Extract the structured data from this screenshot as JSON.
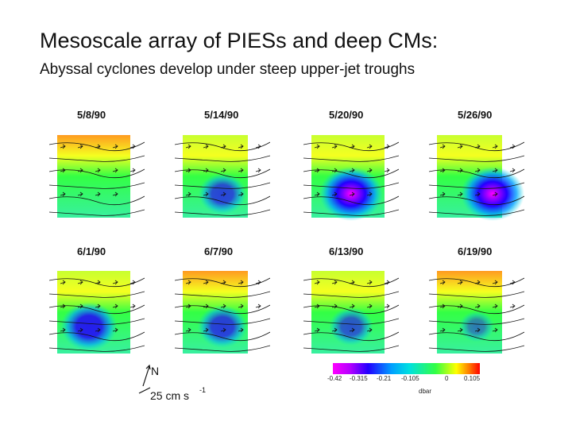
{
  "title": "Mesoscale array of PIESs and deep CMs:",
  "subtitle": "Abyssal cyclones develop under steep upper-jet troughs",
  "panels": [
    {
      "date": "5/8/90",
      "eddy_strength": 0.0,
      "high_top": true
    },
    {
      "date": "5/14/90",
      "eddy_strength": 0.55,
      "high_top": false
    },
    {
      "date": "5/20/90",
      "eddy_strength": 1.0,
      "high_top": false
    },
    {
      "date": "5/26/90",
      "eddy_strength": 1.0,
      "high_top": false
    },
    {
      "date": "6/1/90",
      "eddy_strength": 0.8,
      "high_top": false
    },
    {
      "date": "6/7/90",
      "eddy_strength": 0.6,
      "high_top": true
    },
    {
      "date": "6/13/90",
      "eddy_strength": 0.45,
      "high_top": false
    },
    {
      "date": "6/19/90",
      "eddy_strength": 0.2,
      "high_top": true
    }
  ],
  "legend": {
    "north": "N",
    "scale": "25 cm s",
    "scale_exp": "-1",
    "ticks": [
      "-0.42",
      "-0.315",
      "-0.21",
      "-0.105",
      "0",
      "0.105"
    ],
    "unit": "dbar"
  },
  "colors": {
    "min": "#ff00ff",
    "low": "#2200ff",
    "mid": "#00e0e0",
    "zero": "#33ff44",
    "high": "#ff0000"
  }
}
